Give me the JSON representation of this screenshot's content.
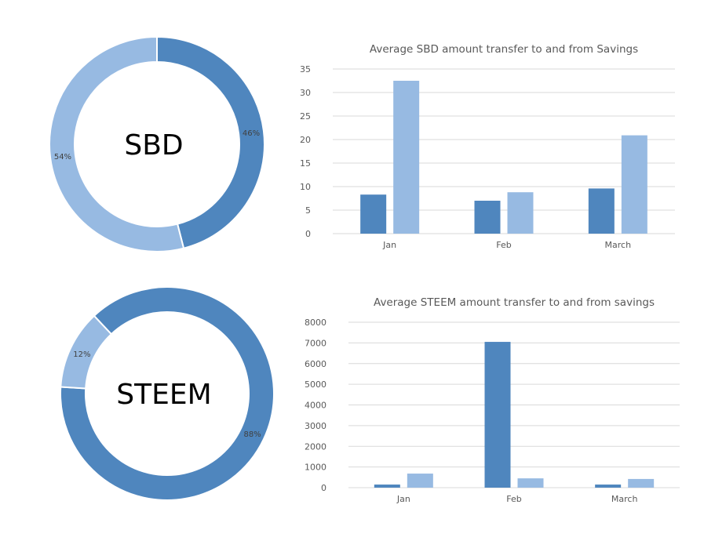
{
  "colors": {
    "dark": "#4f86be",
    "light": "#97bae2"
  },
  "chart_data": [
    {
      "type": "pie",
      "style": "donut",
      "center_label": "SBD",
      "slices": [
        {
          "label": "46%",
          "value": 46,
          "color": "dark"
        },
        {
          "label": "54%",
          "value": 54,
          "color": "light"
        }
      ]
    },
    {
      "type": "bar",
      "title": "Average SBD amount transfer to and from Savings",
      "categories": [
        "Jan",
        "Feb",
        "March"
      ],
      "series": [
        {
          "values": [
            8.3,
            7.0,
            9.6
          ],
          "color": "dark"
        },
        {
          "values": [
            32.5,
            8.8,
            20.9
          ],
          "color": "light"
        }
      ],
      "ylim": [
        0,
        35
      ],
      "yticks": [
        "0",
        "5",
        "10",
        "15",
        "20",
        "25",
        "30",
        "35"
      ],
      "grid": true
    },
    {
      "type": "pie",
      "style": "donut",
      "center_label": "STEEM",
      "slices": [
        {
          "label": "88%",
          "value": 88,
          "color": "dark"
        },
        {
          "label": "12%",
          "value": 12,
          "color": "light"
        }
      ]
    },
    {
      "type": "bar",
      "title": "Average STEEM amount transfer to and from savings",
      "categories": [
        "Jan",
        "Feb",
        "March"
      ],
      "series": [
        {
          "values": [
            150,
            7050,
            150
          ],
          "color": "dark"
        },
        {
          "values": [
            680,
            450,
            420
          ],
          "color": "light"
        }
      ],
      "ylim": [
        0,
        8000
      ],
      "yticks": [
        "0",
        "1000",
        "2000",
        "3000",
        "4000",
        "5000",
        "6000",
        "7000",
        "8000"
      ],
      "grid": true
    }
  ]
}
